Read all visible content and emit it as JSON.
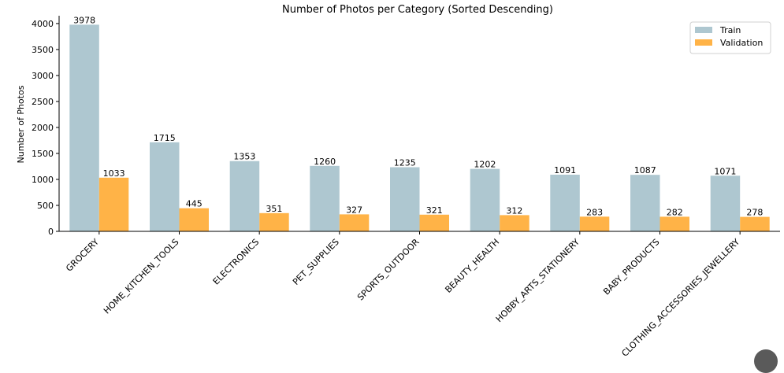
{
  "chart_data": {
    "type": "bar",
    "title": "Number of Photos per Category (Sorted Descending)",
    "xlabel": "",
    "ylabel": "Number of Photos",
    "ylim": [
      0,
      4150
    ],
    "yticks": [
      0,
      500,
      1000,
      1500,
      2000,
      2500,
      3000,
      3500,
      4000
    ],
    "grid": false,
    "legend_position": "top-right",
    "categories": [
      "GROCERY",
      "HOME_KITCHEN_TOOLS",
      "ELECTRONICS",
      "PET_SUPPLIES",
      "SPORTS_OUTDOOR",
      "BEAUTY_HEALTH",
      "HOBBY_ARTS_STATIONERY",
      "BABY_PRODUCTS",
      "CLOTHING_ACCESSORIES_JEWELLERY"
    ],
    "series": [
      {
        "name": "Train",
        "color": "#aec7d0",
        "values": [
          3978,
          1715,
          1353,
          1260,
          1235,
          1202,
          1091,
          1087,
          1071
        ]
      },
      {
        "name": "Validation",
        "color": "#ffb347",
        "values": [
          1033,
          445,
          351,
          327,
          321,
          312,
          283,
          282,
          278
        ]
      }
    ]
  }
}
